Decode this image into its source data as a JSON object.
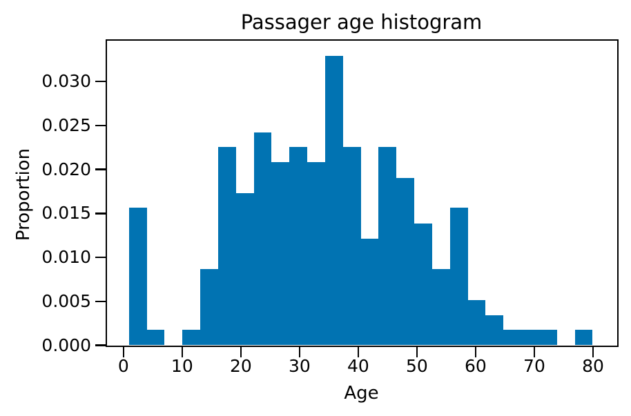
{
  "title": "Passager age histogram",
  "axes": {
    "xlabel": "Age",
    "ylabel": "Proportion"
  },
  "x_ticks": [
    {
      "value": 0,
      "label": "0"
    },
    {
      "value": 10,
      "label": "10"
    },
    {
      "value": 20,
      "label": "20"
    },
    {
      "value": 30,
      "label": "30"
    },
    {
      "value": 40,
      "label": "40"
    },
    {
      "value": 50,
      "label": "50"
    },
    {
      "value": 60,
      "label": "60"
    },
    {
      "value": 70,
      "label": "70"
    },
    {
      "value": 80,
      "label": "80"
    }
  ],
  "y_ticks": [
    {
      "value": 0.0,
      "label": "0.000"
    },
    {
      "value": 0.005,
      "label": "0.005"
    },
    {
      "value": 0.01,
      "label": "0.010"
    },
    {
      "value": 0.015,
      "label": "0.015"
    },
    {
      "value": 0.02,
      "label": "0.020"
    },
    {
      "value": 0.025,
      "label": "0.025"
    },
    {
      "value": 0.03,
      "label": "0.030"
    }
  ],
  "colors": {
    "bar": "#0173b2",
    "spine": "#000000",
    "text": "#000000",
    "background": "#ffffff"
  },
  "chart_data": {
    "type": "bar",
    "subtype": "histogram",
    "title": "Passager age histogram",
    "xlabel": "Age",
    "ylabel": "Proportion",
    "bin_edges": [
      1.0,
      4.04,
      7.08,
      10.12,
      13.15,
      16.19,
      19.23,
      22.27,
      25.31,
      28.35,
      31.38,
      34.42,
      37.46,
      40.5,
      43.54,
      46.58,
      49.62,
      52.65,
      55.69,
      58.73,
      61.77,
      64.81,
      67.85,
      70.88,
      73.92,
      76.96,
      80.0
    ],
    "values": [
      0.0156,
      0.0017,
      0.0,
      0.0017,
      0.0086,
      0.0225,
      0.0173,
      0.0242,
      0.0208,
      0.0225,
      0.0208,
      0.0329,
      0.0225,
      0.0121,
      0.0225,
      0.019,
      0.0138,
      0.0086,
      0.0156,
      0.0051,
      0.0034,
      0.0017,
      0.0017,
      0.0017,
      0.0,
      0.0017
    ],
    "xlim": [
      -2.8,
      84.0
    ],
    "ylim": [
      0,
      0.0346
    ],
    "grid": false,
    "legend": null
  }
}
